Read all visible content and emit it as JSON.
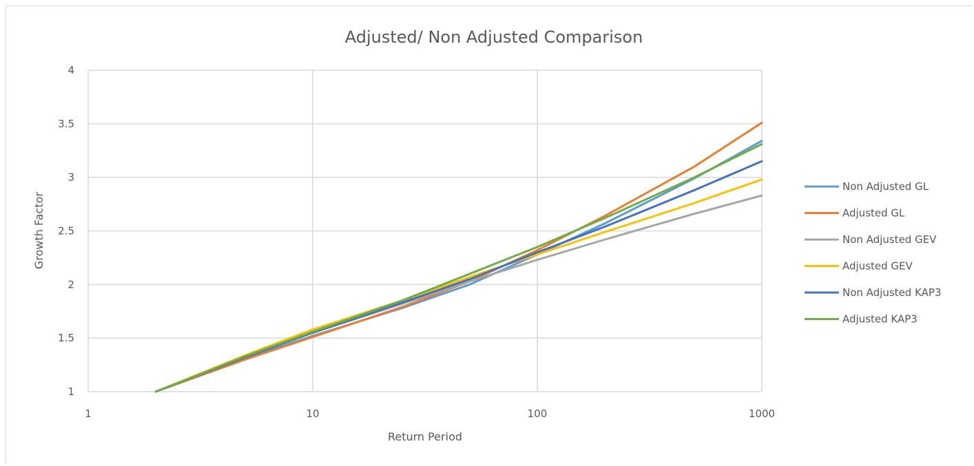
{
  "chart_data": {
    "type": "line",
    "title": "Adjusted/ Non Adjusted Comparison",
    "xlabel": "Return Period",
    "ylabel": "Growth Factor",
    "xscale": "log",
    "xlim": [
      1,
      1000
    ],
    "ylim": [
      1,
      4
    ],
    "xticks": [
      1,
      10,
      100,
      1000
    ],
    "xtick_labels": [
      "1",
      "10",
      "100",
      "1000"
    ],
    "yticks": [
      1,
      1.5,
      2,
      2.5,
      3,
      3.5,
      4
    ],
    "ytick_labels": [
      "1",
      "1.5",
      "2",
      "2.5",
      "3",
      "3.5",
      "4"
    ],
    "grid": true,
    "legend_position": "right",
    "x": [
      2,
      5,
      10,
      25,
      50,
      100,
      200,
      500,
      1000
    ],
    "series": [
      {
        "name": "Non Adjusted GL",
        "color": "#5b9bd5",
        "values": [
          1.0,
          1.31,
          1.52,
          1.78,
          2.0,
          2.28,
          2.57,
          2.99,
          3.34
        ]
      },
      {
        "name": "Adjusted GL",
        "color": "#ed7d31",
        "values": [
          1.0,
          1.3,
          1.51,
          1.79,
          2.03,
          2.32,
          2.64,
          3.1,
          3.51
        ]
      },
      {
        "name": "Non Adjusted GEV",
        "color": "#a5a5a5",
        "values": [
          1.0,
          1.33,
          1.55,
          1.82,
          2.03,
          2.23,
          2.42,
          2.66,
          2.83
        ]
      },
      {
        "name": "Adjusted GEV",
        "color": "#ffc000",
        "values": [
          1.0,
          1.34,
          1.58,
          1.85,
          2.07,
          2.28,
          2.49,
          2.76,
          2.98
        ]
      },
      {
        "name": "Non Adjusted KAP3",
        "color": "#4472c4",
        "values": [
          1.0,
          1.32,
          1.55,
          1.83,
          2.05,
          2.3,
          2.54,
          2.88,
          3.15
        ]
      },
      {
        "name": "Adjusted KAP3",
        "color": "#70ad47",
        "values": [
          1.0,
          1.33,
          1.56,
          1.85,
          2.1,
          2.35,
          2.62,
          3.0,
          3.31
        ]
      }
    ]
  }
}
